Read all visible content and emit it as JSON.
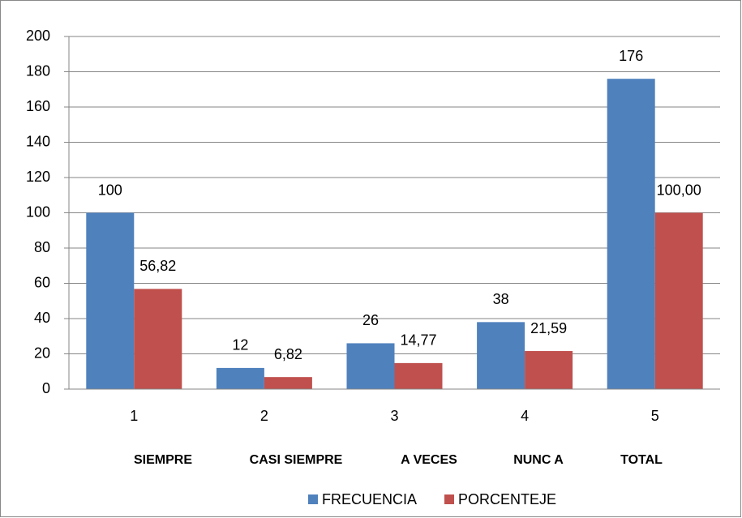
{
  "chart_data": {
    "type": "bar",
    "categories": [
      "1",
      "2",
      "3",
      "4",
      "5"
    ],
    "category_names": [
      "SIEMPRE",
      "CASI SIEMPRE",
      "A VECES",
      "NUNC A",
      "TOTAL"
    ],
    "series": [
      {
        "name": "FRECUENCIA",
        "color": "#4f81bd",
        "values": [
          100,
          12,
          26,
          38,
          176
        ]
      },
      {
        "name": "PORCENTEJE",
        "color": "#c0504d",
        "values": [
          56.82,
          6.82,
          14.77,
          21.59,
          100
        ],
        "value_labels": [
          "56,82",
          "6,82",
          "14,77",
          "21,59",
          "100,00"
        ]
      }
    ],
    "ylim": [
      0,
      200
    ],
    "yticks": [
      0,
      20,
      40,
      60,
      80,
      100,
      120,
      140,
      160,
      180,
      200
    ],
    "grid": true,
    "legend": "bottom"
  }
}
